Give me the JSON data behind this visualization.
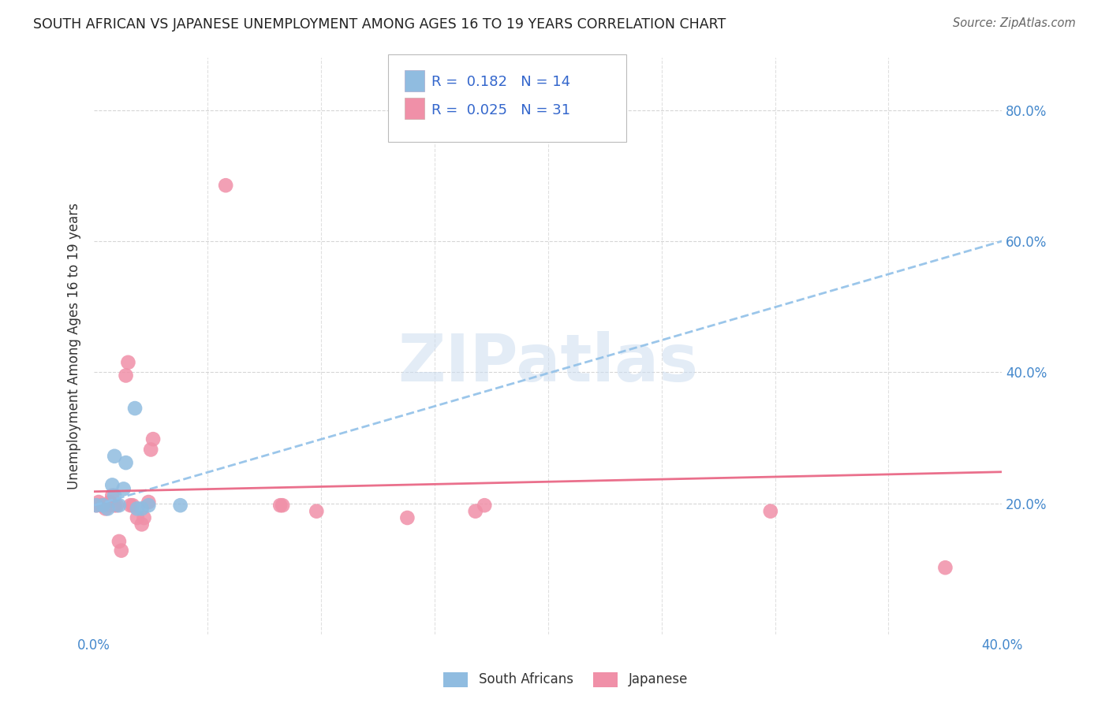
{
  "title": "SOUTH AFRICAN VS JAPANESE UNEMPLOYMENT AMONG AGES 16 TO 19 YEARS CORRELATION CHART",
  "source": "Source: ZipAtlas.com",
  "ylabel": "Unemployment Among Ages 16 to 19 years",
  "xlim": [
    0.0,
    0.4
  ],
  "ylim": [
    0.0,
    0.88
  ],
  "xtick_pos": [
    0.0,
    0.05,
    0.1,
    0.15,
    0.2,
    0.25,
    0.3,
    0.35,
    0.4
  ],
  "xtick_labels": [
    "0.0%",
    "",
    "",
    "",
    "",
    "",
    "",
    "",
    "40.0%"
  ],
  "ytick_pos": [
    0.2,
    0.4,
    0.6,
    0.8
  ],
  "ytick_labels": [
    "20.0%",
    "40.0%",
    "60.0%",
    "80.0%"
  ],
  "sa_color": "#90bce0",
  "jp_color": "#f090a8",
  "sa_trend_color": "#90c0e8",
  "jp_trend_color": "#e86080",
  "grid_color": "#cccccc",
  "bg_color": "#ffffff",
  "watermark_text": "ZIPatlas",
  "watermark_color": "#ccddf0",
  "sa_points": [
    [
      0.001,
      0.197
    ],
    [
      0.004,
      0.197
    ],
    [
      0.006,
      0.192
    ],
    [
      0.008,
      0.228
    ],
    [
      0.009,
      0.212
    ],
    [
      0.009,
      0.272
    ],
    [
      0.011,
      0.197
    ],
    [
      0.013,
      0.222
    ],
    [
      0.014,
      0.262
    ],
    [
      0.018,
      0.345
    ],
    [
      0.019,
      0.192
    ],
    [
      0.021,
      0.192
    ],
    [
      0.024,
      0.197
    ],
    [
      0.038,
      0.197
    ]
  ],
  "jp_points": [
    [
      0.001,
      0.197
    ],
    [
      0.002,
      0.202
    ],
    [
      0.003,
      0.197
    ],
    [
      0.004,
      0.197
    ],
    [
      0.005,
      0.192
    ],
    [
      0.006,
      0.197
    ],
    [
      0.007,
      0.202
    ],
    [
      0.008,
      0.212
    ],
    [
      0.009,
      0.197
    ],
    [
      0.01,
      0.197
    ],
    [
      0.011,
      0.142
    ],
    [
      0.012,
      0.128
    ],
    [
      0.014,
      0.395
    ],
    [
      0.015,
      0.415
    ],
    [
      0.016,
      0.197
    ],
    [
      0.017,
      0.197
    ],
    [
      0.019,
      0.178
    ],
    [
      0.021,
      0.168
    ],
    [
      0.022,
      0.178
    ],
    [
      0.024,
      0.202
    ],
    [
      0.025,
      0.282
    ],
    [
      0.026,
      0.298
    ],
    [
      0.058,
      0.685
    ],
    [
      0.082,
      0.197
    ],
    [
      0.083,
      0.197
    ],
    [
      0.098,
      0.188
    ],
    [
      0.138,
      0.178
    ],
    [
      0.168,
      0.188
    ],
    [
      0.172,
      0.197
    ],
    [
      0.298,
      0.188
    ],
    [
      0.375,
      0.102
    ]
  ],
  "sa_trend_x": [
    0.0,
    0.4
  ],
  "sa_trend_y": [
    0.197,
    0.6
  ],
  "jp_trend_x": [
    0.0,
    0.4
  ],
  "jp_trend_y": [
    0.218,
    0.248
  ],
  "legend_r_sa": "0.182",
  "legend_n_sa": "14",
  "legend_r_jp": "0.025",
  "legend_n_jp": "31",
  "legend_text_color": "#3366cc",
  "legend_sa_color": "#90bce0",
  "legend_jp_color": "#f090a8",
  "bottom_legend": [
    "South Africans",
    "Japanese"
  ]
}
